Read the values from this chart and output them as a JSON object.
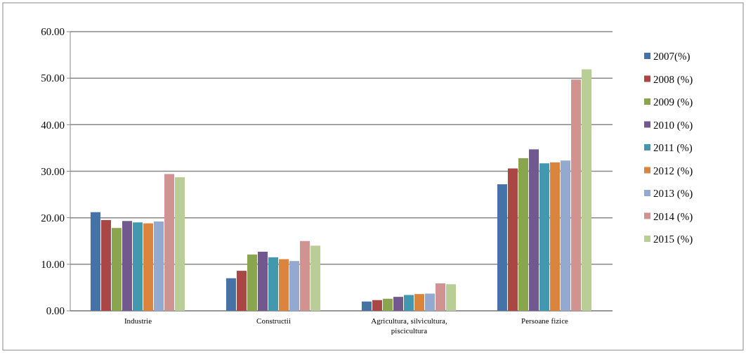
{
  "chart_data": {
    "type": "bar",
    "categories": [
      "Industrie",
      "Constructii",
      "Agricultura, silvicultura, piscicultura",
      "Persoane fizice"
    ],
    "series": [
      {
        "name": "2007(%)",
        "color": "#4572a7",
        "values": [
          21.2,
          7.0,
          2.0,
          27.2
        ]
      },
      {
        "name": "2008 (%)",
        "color": "#aa4643",
        "values": [
          19.5,
          8.6,
          2.3,
          30.6
        ]
      },
      {
        "name": "2009 (%)",
        "color": "#89a54e",
        "values": [
          17.8,
          12.1,
          2.6,
          32.8
        ]
      },
      {
        "name": "2010 (%)",
        "color": "#71588f",
        "values": [
          19.3,
          12.7,
          3.0,
          34.7
        ]
      },
      {
        "name": "2011 (%)",
        "color": "#4198af",
        "values": [
          19.0,
          11.5,
          3.4,
          31.7
        ]
      },
      {
        "name": "2012 (%)",
        "color": "#db843d",
        "values": [
          18.8,
          11.1,
          3.6,
          31.9
        ]
      },
      {
        "name": "2013 (%)",
        "color": "#93a9cf",
        "values": [
          19.2,
          10.7,
          3.7,
          32.3
        ]
      },
      {
        "name": "2014 (%)",
        "color": "#d19392",
        "values": [
          29.4,
          15.0,
          5.9,
          49.7
        ]
      },
      {
        "name": "2015 (%)",
        "color": "#b9cd96",
        "values": [
          28.7,
          14.0,
          5.7,
          51.9
        ]
      }
    ],
    "ylim": [
      0,
      60
    ],
    "yticks": [
      {
        "value": 0,
        "label": "0.00"
      },
      {
        "value": 10,
        "label": "10.00"
      },
      {
        "value": 20,
        "label": "20.00"
      },
      {
        "value": 30,
        "label": "30.00"
      },
      {
        "value": 40,
        "label": "40.00"
      },
      {
        "value": 50,
        "label": "50.00"
      },
      {
        "value": 60,
        "label": "60.00"
      }
    ],
    "grid": "y",
    "legend": "right"
  }
}
